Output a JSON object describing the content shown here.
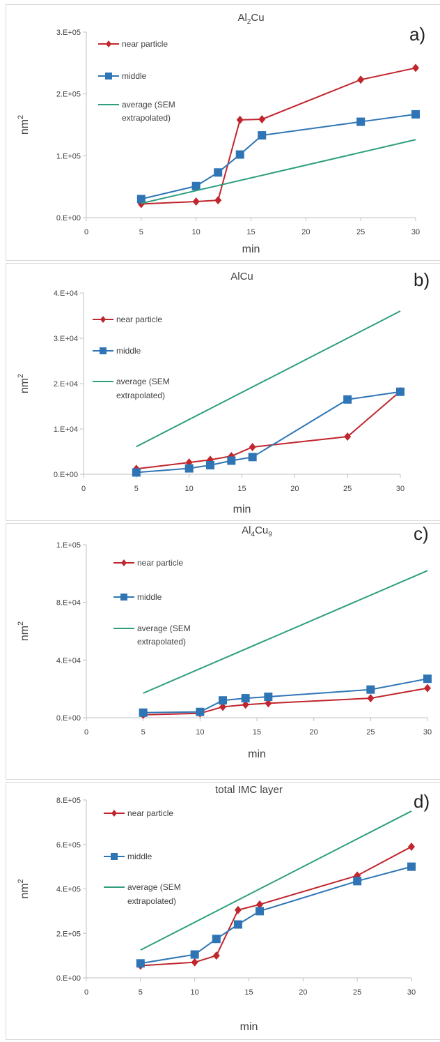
{
  "colors": {
    "near": "#c0262d",
    "middle": "#2f75b5",
    "average": "#2e9e7f",
    "axis": "#bfbfbf"
  },
  "chart_data": [
    {
      "type": "line",
      "panel_letter": "a)",
      "title_parts": [
        [
          "Al",
          ""
        ],
        [
          "2",
          "sub"
        ],
        [
          "Cu",
          ""
        ]
      ],
      "xlabel": "min",
      "ylabel_base": "nm",
      "ylabel_sup": "2",
      "xlim": [
        0,
        30
      ],
      "ylim": [
        0,
        300000
      ],
      "xticks": [
        0,
        5,
        10,
        15,
        20,
        25,
        30
      ],
      "yticks": [
        0,
        100000,
        200000,
        300000
      ],
      "ytick_labels": [
        "0.E+00",
        "1.E+05",
        "2.E+05",
        "3.E+05"
      ],
      "legend": [
        "near particle",
        "middle",
        "average (SEM",
        "extrapolated)"
      ],
      "series": [
        {
          "name": "near particle",
          "marker": "diamond",
          "x": [
            5,
            10,
            12,
            14,
            16,
            25,
            30
          ],
          "y": [
            22000,
            26000,
            28000,
            158000,
            159000,
            223000,
            242000
          ]
        },
        {
          "name": "middle",
          "marker": "square",
          "x": [
            5,
            10,
            12,
            14,
            16,
            25,
            30
          ],
          "y": [
            30000,
            51000,
            73000,
            102000,
            133000,
            155000,
            167000
          ]
        },
        {
          "name": "average (SEM extrapolated)",
          "marker": "none",
          "x": [
            5,
            30
          ],
          "y": [
            23000,
            126000
          ]
        }
      ]
    },
    {
      "type": "line",
      "panel_letter": "b)",
      "title_parts": [
        [
          "AlCu",
          ""
        ]
      ],
      "xlabel": "min",
      "ylabel_base": "nm",
      "ylabel_sup": "2",
      "xlim": [
        0,
        30
      ],
      "ylim": [
        0,
        40000
      ],
      "xticks": [
        0,
        5,
        10,
        15,
        20,
        25,
        30
      ],
      "yticks": [
        0,
        10000,
        20000,
        30000,
        40000
      ],
      "ytick_labels": [
        "0.E+00",
        "1.E+04",
        "2.E+04",
        "3.E+04",
        "4.E+04"
      ],
      "legend": [
        "near particle",
        "middle",
        "average (SEM",
        "extrapolated)"
      ],
      "series": [
        {
          "name": "near particle",
          "marker": "diamond",
          "x": [
            5,
            10,
            12,
            14,
            16,
            25,
            30
          ],
          "y": [
            1200,
            2600,
            3200,
            4000,
            6000,
            8300,
            18300
          ]
        },
        {
          "name": "middle",
          "marker": "square",
          "x": [
            5,
            10,
            12,
            14,
            16,
            25,
            30
          ],
          "y": [
            400,
            1300,
            2000,
            3000,
            3800,
            16500,
            18200
          ]
        },
        {
          "name": "average (SEM extrapolated)",
          "marker": "none",
          "x": [
            5,
            30
          ],
          "y": [
            6100,
            36000
          ]
        }
      ]
    },
    {
      "type": "line",
      "panel_letter": "c)",
      "title_parts": [
        [
          "Al",
          ""
        ],
        [
          "4",
          "sub"
        ],
        [
          "Cu",
          ""
        ],
        [
          "9",
          "sub"
        ]
      ],
      "xlabel": "min",
      "ylabel_base": "nm",
      "ylabel_sup": "2",
      "xlim": [
        0,
        30
      ],
      "ylim": [
        0,
        120000
      ],
      "xticks": [
        0,
        5,
        10,
        15,
        20,
        25,
        30
      ],
      "yticks": [
        0,
        40000,
        80000,
        120000
      ],
      "ytick_labels": [
        "0.E+00",
        "4.E+04",
        "8.E+04",
        "1.E+05"
      ],
      "legend": [
        "near particle",
        "middle",
        "average (SEM",
        "extrapolated)"
      ],
      "series": [
        {
          "name": "near particle",
          "marker": "diamond",
          "x": [
            5,
            10,
            12,
            14,
            16,
            25,
            30
          ],
          "y": [
            2000,
            3000,
            7500,
            9000,
            10000,
            13500,
            20500
          ]
        },
        {
          "name": "middle",
          "marker": "square",
          "x": [
            5,
            10,
            12,
            14,
            16,
            25,
            30
          ],
          "y": [
            3500,
            4000,
            12000,
            13500,
            14500,
            19500,
            27000
          ]
        },
        {
          "name": "average (SEM extrapolated)",
          "marker": "none",
          "x": [
            5,
            30
          ],
          "y": [
            17000,
            102000
          ]
        }
      ]
    },
    {
      "type": "line",
      "panel_letter": "d)",
      "title_parts": [
        [
          "total IMC layer",
          ""
        ]
      ],
      "xlabel": "min",
      "ylabel_base": "nm",
      "ylabel_sup": "2",
      "xlim": [
        0,
        30
      ],
      "ylim": [
        0,
        800000
      ],
      "xticks": [
        0,
        5,
        10,
        15,
        20,
        25,
        30
      ],
      "yticks": [
        0,
        200000,
        400000,
        600000,
        800000
      ],
      "ytick_labels": [
        "0.E+00",
        "2.E+05",
        "4.E+05",
        "6.E+05",
        "8.E+05"
      ],
      "legend": [
        "near particle",
        "middle",
        "average (SEM",
        "extrapolated)"
      ],
      "series": [
        {
          "name": "near particle",
          "marker": "diamond",
          "x": [
            5,
            10,
            12,
            14,
            16,
            25,
            30
          ],
          "y": [
            55000,
            70000,
            100000,
            305000,
            330000,
            460000,
            590000
          ]
        },
        {
          "name": "middle",
          "marker": "square",
          "x": [
            5,
            10,
            12,
            14,
            16,
            25,
            30
          ],
          "y": [
            65000,
            105000,
            175000,
            240000,
            300000,
            435000,
            500000
          ]
        },
        {
          "name": "average (SEM extrapolated)",
          "marker": "none",
          "x": [
            5,
            30
          ],
          "y": [
            125000,
            750000
          ]
        }
      ]
    }
  ]
}
